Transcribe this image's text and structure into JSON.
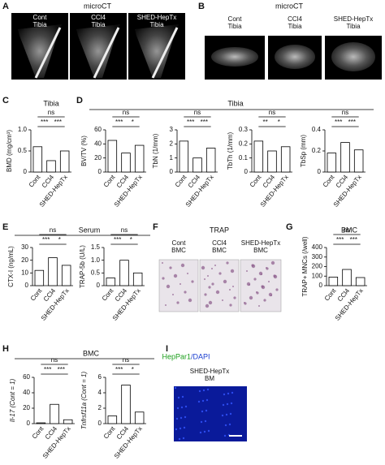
{
  "figure": {
    "A": {
      "letter": "A",
      "title": "microCT",
      "captions": [
        [
          "Cont",
          "Tibia"
        ],
        [
          "CCl4",
          "Tibia"
        ],
        [
          "SHED-HepTx",
          "Tibia"
        ]
      ]
    },
    "B": {
      "letter": "B",
      "title": "microCT",
      "captions": [
        [
          "Cont",
          "Tibia"
        ],
        [
          "CCl4",
          "Tibia"
        ],
        [
          "SHED-HepTx",
          "Tibia"
        ]
      ]
    },
    "C": {
      "letter": "C"
    },
    "D": {
      "letter": "D",
      "title": "Tibia"
    },
    "E": {
      "letter": "E",
      "title": "Serum"
    },
    "F": {
      "letter": "F",
      "title": "TRAP",
      "captions": [
        [
          "Cont",
          "BMC"
        ],
        [
          "CCl4",
          "BMC"
        ],
        [
          "SHED-HepTx",
          "BMC"
        ]
      ]
    },
    "G": {
      "letter": "G",
      "title": "BMC"
    },
    "H": {
      "letter": "H",
      "title": "BMC"
    },
    "I": {
      "letter": "I",
      "title_parts": [
        "HepPar1",
        "/DAPI"
      ],
      "caption": [
        "SHED-HepTx",
        "BM"
      ]
    }
  },
  "chart_data": [
    {
      "type": "bar",
      "title": "Tibia",
      "ylabel": "BMD (mg/cm³)",
      "categories": [
        "Cont",
        "CCl4",
        "SHED-HepTx"
      ],
      "values": [
        0.6,
        0.27,
        0.5
      ],
      "color": "#ffffff",
      "ylim": [
        0,
        1
      ],
      "yticks": [
        0,
        0.5,
        {
          "value": 1,
          "label": "1.0"
        }
      ],
      "annotations": [
        "ns",
        "***",
        "***"
      ]
    },
    {
      "type": "bar",
      "ylabel": "BV/TV (%)",
      "categories": [
        "Cont",
        "CCl4",
        "SHED-HepTx"
      ],
      "values": [
        45,
        27,
        38
      ],
      "color": "#ffffff",
      "ylim": [
        0,
        60
      ],
      "yticks": [
        0,
        20,
        40,
        60
      ],
      "annotations": [
        "ns",
        "***",
        "*"
      ]
    },
    {
      "type": "bar",
      "ylabel": "TbN (1/mm)",
      "categories": [
        "Cont",
        "CCl4",
        "SHED-HepTx"
      ],
      "values": [
        2.2,
        1.0,
        1.7
      ],
      "color": "#ffffff",
      "ylim": [
        0,
        3
      ],
      "yticks": [
        0,
        1,
        2,
        3
      ],
      "annotations": [
        "ns",
        "***",
        "***"
      ]
    },
    {
      "type": "bar",
      "ylabel": "TbTh (1/mm)",
      "categories": [
        "Cont",
        "CCl4",
        "SHED-HepTx"
      ],
      "values": [
        0.22,
        0.15,
        0.18
      ],
      "color": "#ffffff",
      "ylim": [
        0,
        0.3
      ],
      "yticks": [
        0,
        0.1,
        0.2,
        0.3
      ],
      "annotations": [
        "ns",
        "**",
        "*"
      ]
    },
    {
      "type": "bar",
      "ylabel": "TbSp (mm)",
      "categories": [
        "Cont",
        "CCl4",
        "SHED-HepTx"
      ],
      "values": [
        0.18,
        0.28,
        0.21
      ],
      "color": "#ffffff",
      "ylim": [
        0,
        0.4
      ],
      "yticks": [
        0,
        0.2,
        0.4
      ],
      "annotations": [
        "ns",
        "***",
        "***"
      ]
    },
    {
      "type": "bar",
      "ylabel": "CTX-I (ng/mL)",
      "categories": [
        "Cont",
        "CCl4",
        "SHED-HepTx"
      ],
      "values": [
        12,
        22,
        16
      ],
      "color": "#ffffff",
      "ylim": [
        0,
        30
      ],
      "yticks": [
        0,
        10,
        20,
        30
      ],
      "annotations": [
        "ns",
        "***",
        "*"
      ]
    },
    {
      "type": "bar",
      "ylabel": "TRAP-5b (U/L)",
      "categories": [
        "Cont",
        "CCl4",
        "SHED-HepTx"
      ],
      "values": [
        0.3,
        1.0,
        0.5
      ],
      "color": "#ffffff",
      "ylim": [
        0,
        1.5
      ],
      "yticks": [
        0,
        0.5,
        {
          "value": 1,
          "label": "1.0"
        },
        1.5
      ],
      "annotations": [
        "ns",
        "***",
        "*"
      ]
    },
    {
      "type": "bar",
      "ylabel": "TRAP+ MNCs (/well)",
      "categories": [
        "Cont",
        "CCl4",
        "SHED-HepTx"
      ],
      "values": [
        90,
        170,
        85
      ],
      "color": "#ffffff",
      "ylim": [
        0,
        400
      ],
      "yticks": [
        0,
        100,
        200,
        300,
        400
      ],
      "annotations": [
        "ns",
        "***",
        "***"
      ]
    },
    {
      "type": "bar",
      "ylabel": "Il-17 (Cont = 1)",
      "categories": [
        "Cont",
        "CCl4",
        "SHED-HepTx"
      ],
      "values": [
        1,
        25,
        5
      ],
      "color": "#ffffff",
      "ylim": [
        0,
        60
      ],
      "yticks": [
        0,
        20,
        40,
        60
      ],
      "annotations": [
        "ns",
        "***",
        "***"
      ]
    },
    {
      "type": "bar",
      "ylabel": "Tnfrsf11a (Cont = 1)",
      "categories": [
        "Cont",
        "CCl4",
        "SHED-HepTx"
      ],
      "values": [
        1,
        5,
        1.5
      ],
      "color": "#ffffff",
      "ylim": [
        0,
        6
      ],
      "yticks": [
        0,
        2,
        4,
        6
      ],
      "annotations": [
        "ns",
        "***",
        "*"
      ]
    }
  ]
}
